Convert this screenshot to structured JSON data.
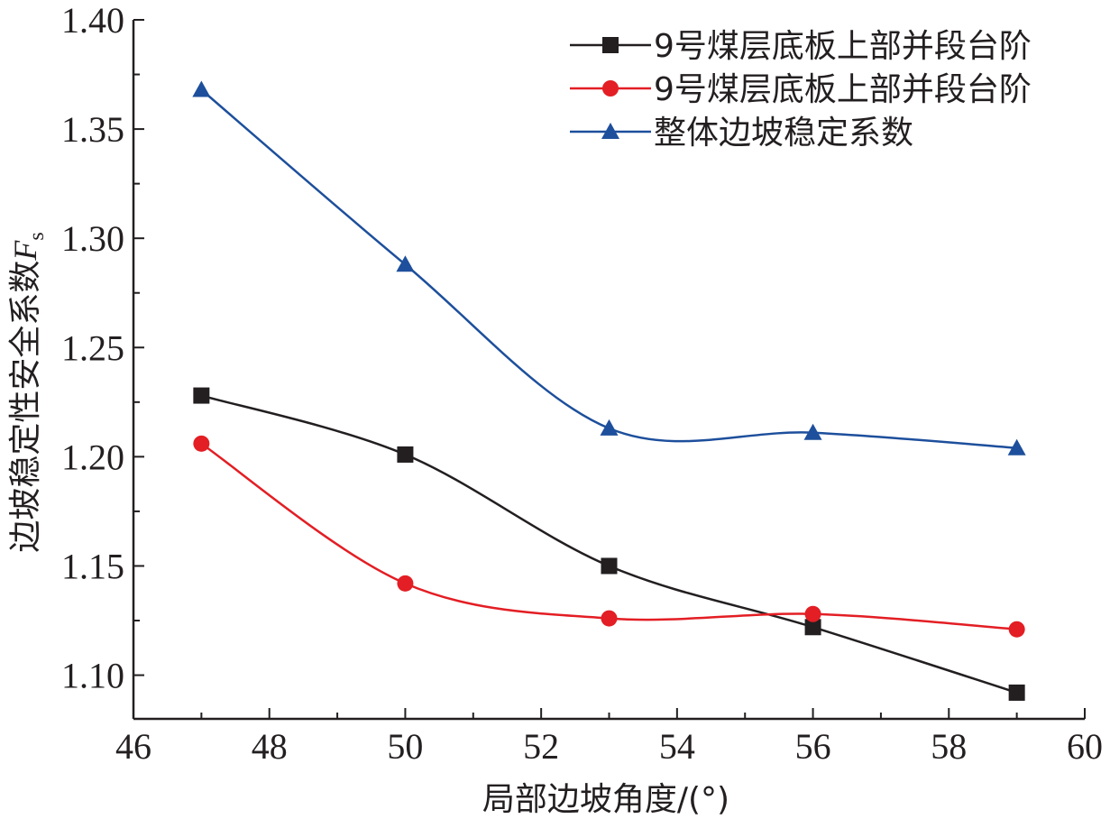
{
  "chart_data": {
    "type": "line",
    "xlabel": "局部边坡角度/(°)",
    "ylabel": "边坡稳定性安全系数",
    "ylabel_symbol": "F",
    "ylabel_subscript": "s",
    "xlim": [
      46,
      60
    ],
    "ylim": [
      1.08,
      1.4
    ],
    "x_ticks": [
      "46",
      "48",
      "50",
      "52",
      "54",
      "56",
      "58",
      "60"
    ],
    "y_ticks": [
      "1.10",
      "1.15",
      "1.20",
      "1.25",
      "1.30",
      "1.35",
      "1.40"
    ],
    "x": [
      47,
      50,
      53,
      56,
      59
    ],
    "legend_position": "top-right",
    "grid": false,
    "series": [
      {
        "name": "9号煤层底板上部并段台阶",
        "marker": "square",
        "color": "#231f20",
        "values": [
          1.228,
          1.201,
          1.15,
          1.122,
          1.092
        ]
      },
      {
        "name": "9号煤层底板上部并段台阶",
        "marker": "circle",
        "color": "#e31e24",
        "values": [
          1.206,
          1.142,
          1.126,
          1.128,
          1.121
        ]
      },
      {
        "name": "整体边坡稳定系数",
        "marker": "triangle",
        "color": "#1d4f9c",
        "values": [
          1.368,
          1.288,
          1.213,
          1.211,
          1.204
        ]
      }
    ]
  }
}
